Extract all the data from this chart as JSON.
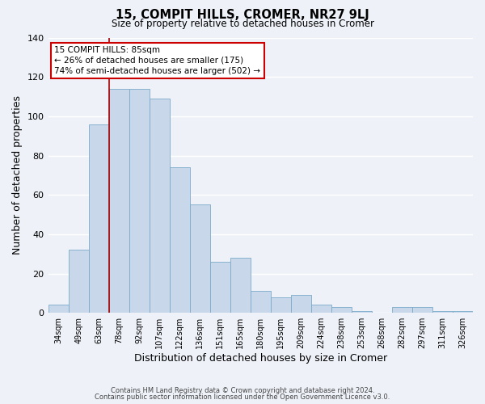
{
  "title": "15, COMPIT HILLS, CROMER, NR27 9LJ",
  "subtitle": "Size of property relative to detached houses in Cromer",
  "xlabel": "Distribution of detached houses by size in Cromer",
  "ylabel": "Number of detached properties",
  "bar_color": "#c8d8ea",
  "bar_edge_color": "#7aaac8",
  "background_color": "#eef2f8",
  "grid_color": "#ffffff",
  "categories": [
    "34sqm",
    "49sqm",
    "63sqm",
    "78sqm",
    "92sqm",
    "107sqm",
    "122sqm",
    "136sqm",
    "151sqm",
    "165sqm",
    "180sqm",
    "195sqm",
    "209sqm",
    "224sqm",
    "238sqm",
    "253sqm",
    "268sqm",
    "282sqm",
    "297sqm",
    "311sqm",
    "326sqm"
  ],
  "values": [
    4,
    32,
    96,
    114,
    114,
    109,
    74,
    55,
    26,
    28,
    11,
    8,
    9,
    4,
    3,
    1,
    0,
    3,
    3,
    1,
    1
  ],
  "ylim": [
    0,
    140
  ],
  "yticks": [
    0,
    20,
    40,
    60,
    80,
    100,
    120,
    140
  ],
  "vline_color": "#aa0000",
  "annotation_title": "15 COMPIT HILLS: 85sqm",
  "annotation_line1": "← 26% of detached houses are smaller (175)",
  "annotation_line2": "74% of semi-detached houses are larger (502) →",
  "annotation_box_color": "#ffffff",
  "annotation_box_edge": "#cc0000",
  "footer1": "Contains HM Land Registry data © Crown copyright and database right 2024.",
  "footer2": "Contains public sector information licensed under the Open Government Licence v3.0."
}
